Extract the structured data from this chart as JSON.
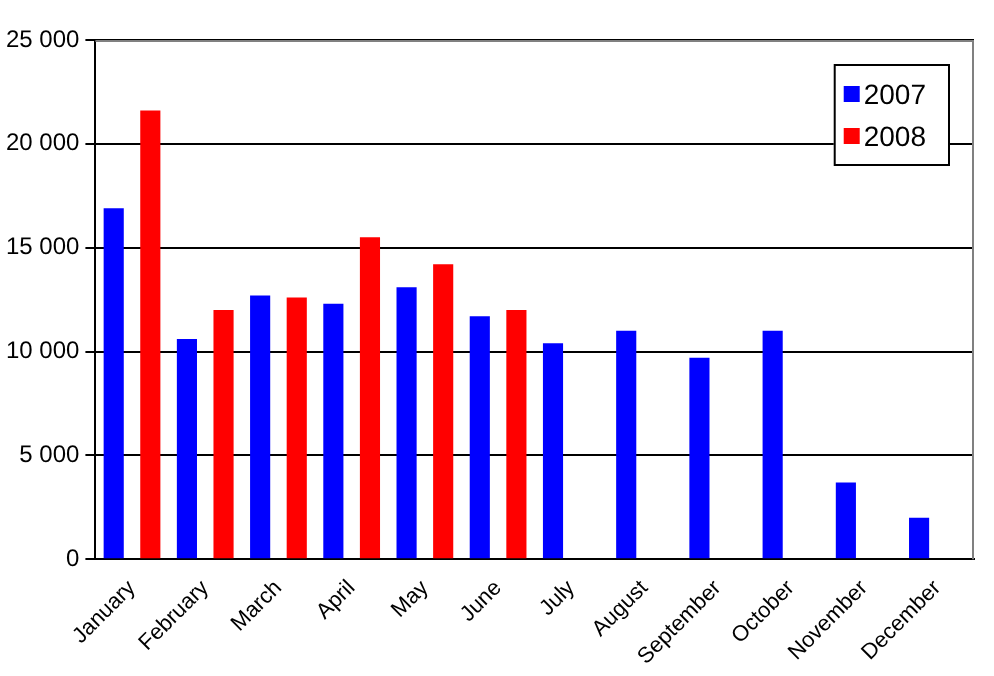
{
  "chart_data": {
    "type": "bar",
    "categories": [
      "January",
      "February",
      "March",
      "April",
      "May",
      "June",
      "July",
      "August",
      "September",
      "October",
      "November",
      "December"
    ],
    "series": [
      {
        "name": "2007",
        "color": "#0000ff",
        "values": [
          16900,
          10600,
          12700,
          12300,
          13100,
          11700,
          10400,
          11000,
          9700,
          11000,
          3700,
          2000
        ]
      },
      {
        "name": "2008",
        "color": "#ff0000",
        "values": [
          21600,
          12000,
          12600,
          15500,
          14200,
          12000,
          null,
          null,
          null,
          null,
          null,
          null
        ]
      }
    ],
    "ylim": [
      0,
      25000
    ],
    "yticks": [
      0,
      {
        "value": 5000,
        "label": "5 000"
      },
      {
        "value": 10000,
        "label": "10 000"
      },
      {
        "value": 15000,
        "label": "15 000"
      },
      {
        "value": 20000,
        "label": "20 000"
      },
      {
        "value": 25000,
        "label": "25 000"
      }
    ],
    "grid": "y",
    "legend": "top right"
  }
}
